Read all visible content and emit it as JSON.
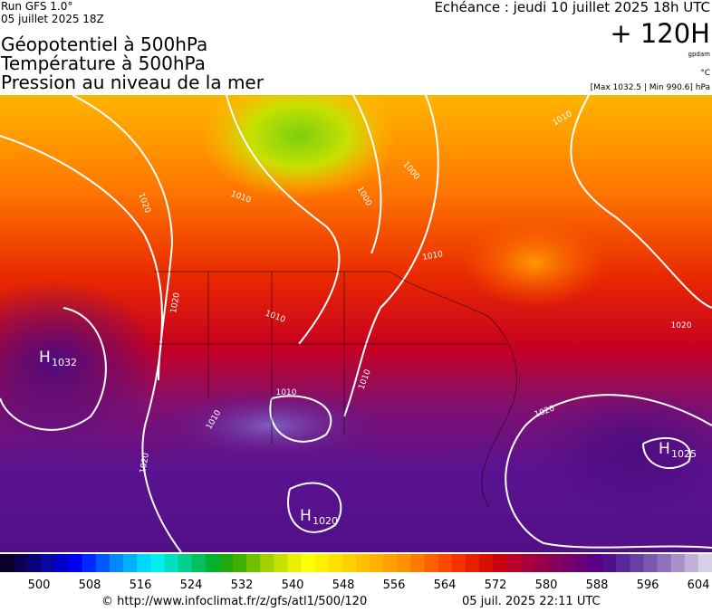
{
  "header": {
    "run": "Run GFS 1.0°",
    "run_date": "05 juillet 2025 18Z",
    "title_lines": [
      "Géopotentiel à 500hPa",
      "Température à 500hPa",
      "Pression au niveau de la mer"
    ],
    "valid": "Echéance : jeudi 10 juillet 2025 18h UTC",
    "lead": "+ 120H",
    "unit_gpdam": "gpdam",
    "unit_temp": "°C",
    "range": "[Max 1032.5 | Min 990.6] hPa"
  },
  "map": {
    "isobar_labels": [
      "1020",
      "1010",
      "1000",
      "1020",
      "1010",
      "1010",
      "1010",
      "1010",
      "1020",
      "1020",
      "1010",
      "1020",
      "1010",
      "1000"
    ],
    "highs": [
      {
        "letter": "H",
        "value": "1032"
      },
      {
        "letter": "H",
        "value": "1025"
      },
      {
        "letter": "H",
        "value": "1020"
      }
    ]
  },
  "colorbar": {
    "ticks": [
      500,
      508,
      516,
      524,
      532,
      540,
      548,
      556,
      564,
      572,
      580,
      588,
      596,
      604
    ],
    "colors": [
      "#0a0028",
      "#0c0050",
      "#0a0078",
      "#0808a0",
      "#0000c8",
      "#0000f0",
      "#0028ff",
      "#0058ff",
      "#0088ff",
      "#00b0ff",
      "#00d8ff",
      "#00f0f0",
      "#00e0c0",
      "#00d090",
      "#00c060",
      "#00b030",
      "#20a810",
      "#40b000",
      "#70c000",
      "#a0d000",
      "#c8e000",
      "#e8f000",
      "#ffff00",
      "#fff000",
      "#ffe000",
      "#ffd000",
      "#ffc000",
      "#ffb000",
      "#ffa000",
      "#ff9000",
      "#ff7800",
      "#ff6000",
      "#ff4800",
      "#f83000",
      "#e82000",
      "#d81000",
      "#c80010",
      "#b80028",
      "#a80038",
      "#980048",
      "#880058",
      "#780068",
      "#680078",
      "#580088",
      "#50108e",
      "#5a2898",
      "#6840a4",
      "#7a58b0",
      "#9070bc",
      "#a890c8",
      "#c0b0d8",
      "#d8d0e4"
    ]
  },
  "footer": {
    "url": "© http://www.infoclimat.fr/z/gfs/atl1/500/120",
    "stamp": "05 juil. 2025 22:11 UTC"
  }
}
